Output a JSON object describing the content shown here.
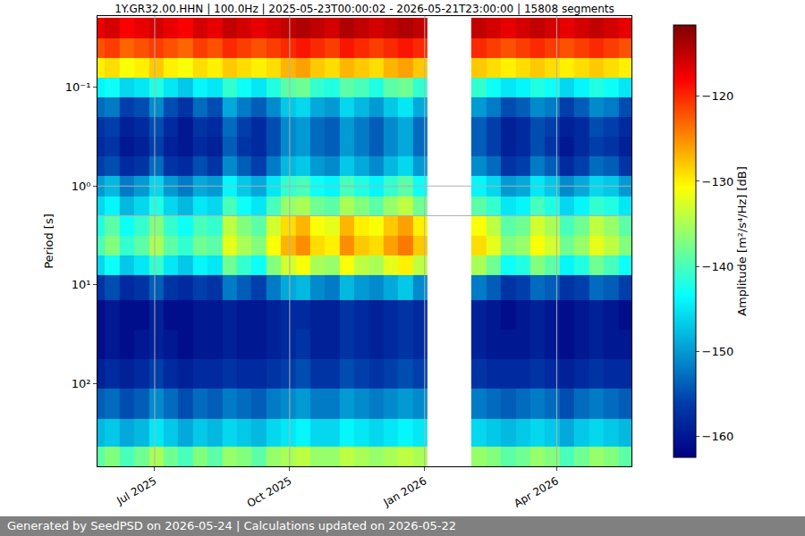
{
  "chart_data": {
    "type": "heatmap",
    "title": "1Y.GR32.00.HHN | 100.0Hz | 2025-05-23T00:00:02 - 2026-05-21T23:00:00 | 15808 segments",
    "footer": "Generated by SeedPSD on 2026-05-24 | Calculations updated on 2026-05-22",
    "y_label": "Period [s]",
    "colorbar_label": "Amplitude [m²/s⁴/Hz] [dB]",
    "color": "Jet",
    "log": "y",
    "grid": true,
    "xlim": [
      "2025-05-23T00:00:02",
      "2026-05-21T23:00:00"
    ],
    "xticks": [
      {
        "value": "2025-07-01",
        "label": "Jul 2025"
      },
      {
        "value": "2025-10-01",
        "label": "Oct 2025"
      },
      {
        "value": "2026-01-01",
        "label": "Jan 2026"
      },
      {
        "value": "2026-04-01",
        "label": "Apr 2026"
      }
    ],
    "ylim": [
      690,
      0.019
    ],
    "yticks": [
      {
        "value": 0.1,
        "label": "10⁻¹"
      },
      {
        "value": 1,
        "label": "10⁰"
      },
      {
        "value": 10,
        "label": "10¹"
      },
      {
        "value": 100,
        "label": "10²"
      }
    ],
    "zlim": [
      -162.5,
      -111.6
    ],
    "zticks": [
      {
        "value": -160,
        "label": "−160"
      },
      {
        "value": -150,
        "label": "−150"
      },
      {
        "value": -140,
        "label": "−140"
      },
      {
        "value": -130,
        "label": "−130"
      },
      {
        "value": -120,
        "label": "−120"
      }
    ],
    "x": [
      "2025-05-23",
      "2025-06-02",
      "2025-06-12",
      "2025-06-22",
      "2025-07-02",
      "2025-07-12",
      "2025-07-22",
      "2025-08-01",
      "2025-08-11",
      "2025-08-21",
      "2025-08-31",
      "2025-09-10",
      "2025-09-20",
      "2025-09-30",
      "2025-10-10",
      "2025-10-20",
      "2025-10-30",
      "2025-11-09",
      "2025-11-19",
      "2025-11-29",
      "2025-12-09",
      "2025-12-19",
      "2025-12-29",
      "2026-01-08",
      "2026-01-18",
      "2026-01-28",
      "2026-02-07",
      "2026-02-17",
      "2026-02-27",
      "2026-03-09",
      "2026-03-19",
      "2026-03-29",
      "2026-04-08",
      "2026-04-18",
      "2026-04-28",
      "2026-05-08",
      "2026-05-18"
    ],
    "y": [
      0.025,
      0.04,
      0.063,
      0.1,
      0.16,
      0.25,
      0.4,
      0.63,
      1,
      1.6,
      2.5,
      4,
      6.3,
      10,
      20,
      40,
      80,
      160,
      320,
      600
    ],
    "z": [
      [
        -117,
        -116,
        -118,
        -117,
        -116,
        -117,
        -118,
        -116,
        -117,
        -115,
        -116,
        -117,
        -116,
        -115,
        -114,
        -115,
        -116,
        -114,
        -115,
        -116,
        -115,
        -114,
        -115,
        null,
        null,
        null,
        -115,
        -116,
        -117,
        -116,
        -115,
        -116,
        -117,
        -116,
        -115,
        -116,
        -117
      ],
      [
        -122,
        -121,
        -123,
        -122,
        -121,
        -122,
        -123,
        -121,
        -122,
        -120,
        -121,
        -122,
        -121,
        -120,
        -119,
        -120,
        -121,
        -119,
        -120,
        -121,
        -120,
        -119,
        -120,
        null,
        null,
        null,
        -120,
        -121,
        -122,
        -121,
        -120,
        -121,
        -122,
        -121,
        -120,
        -121,
        -122
      ],
      [
        -130,
        -129,
        -131,
        -130,
        -128,
        -130,
        -131,
        -129,
        -130,
        -128,
        -129,
        -130,
        -129,
        -127,
        -126,
        -128,
        -129,
        -127,
        -128,
        -129,
        -127,
        -126,
        -128,
        null,
        null,
        null,
        -128,
        -129,
        -130,
        -129,
        -128,
        -129,
        -130,
        -129,
        -128,
        -129,
        -130
      ],
      [
        -144,
        -143,
        -146,
        -145,
        -142,
        -145,
        -147,
        -144,
        -145,
        -141,
        -143,
        -145,
        -142,
        -139,
        -138,
        -141,
        -142,
        -139,
        -140,
        -142,
        -139,
        -138,
        -141,
        null,
        null,
        null,
        -141,
        -143,
        -145,
        -144,
        -142,
        -143,
        -146,
        -144,
        -142,
        -143,
        -145
      ],
      [
        -153,
        -152,
        -156,
        -155,
        -151,
        -155,
        -157,
        -153,
        -155,
        -149,
        -152,
        -154,
        -151,
        -147,
        -146,
        -149,
        -150,
        -146,
        -148,
        -150,
        -147,
        -145,
        -149,
        null,
        null,
        null,
        -150,
        -152,
        -155,
        -154,
        -151,
        -152,
        -156,
        -154,
        -151,
        -152,
        -155
      ],
      [
        -157,
        -156,
        -159,
        -158,
        -155,
        -158,
        -160,
        -157,
        -158,
        -153,
        -156,
        -158,
        -155,
        -151,
        -150,
        -153,
        -154,
        -150,
        -152,
        -154,
        -151,
        -149,
        -153,
        null,
        null,
        null,
        -154,
        -156,
        -159,
        -158,
        -155,
        -156,
        -159,
        -158,
        -155,
        -156,
        -158
      ],
      [
        -158,
        -157,
        -160,
        -159,
        -156,
        -159,
        -160,
        -158,
        -159,
        -154,
        -157,
        -158,
        -155,
        -151,
        -150,
        -153,
        -154,
        -150,
        -152,
        -154,
        -151,
        -149,
        -153,
        null,
        null,
        null,
        -154,
        -156,
        -159,
        -158,
        -155,
        -157,
        -160,
        -158,
        -156,
        -157,
        -159
      ],
      [
        -156,
        -155,
        -158,
        -157,
        -153,
        -157,
        -158,
        -155,
        -157,
        -151,
        -154,
        -156,
        -152,
        -148,
        -147,
        -150,
        -151,
        -147,
        -149,
        -151,
        -148,
        -146,
        -150,
        null,
        null,
        null,
        -151,
        -153,
        -157,
        -156,
        -152,
        -154,
        -158,
        -156,
        -153,
        -154,
        -157
      ],
      [
        -150,
        -148,
        -152,
        -150,
        -146,
        -150,
        -152,
        -149,
        -150,
        -144,
        -147,
        -149,
        -145,
        -141,
        -140,
        -143,
        -144,
        -140,
        -142,
        -144,
        -141,
        -139,
        -143,
        null,
        null,
        null,
        -144,
        -146,
        -150,
        -149,
        -145,
        -147,
        -151,
        -149,
        -146,
        -147,
        -150
      ],
      [
        -146,
        -144,
        -148,
        -146,
        -142,
        -146,
        -148,
        -145,
        -146,
        -140,
        -143,
        -145,
        -140,
        -136,
        -135,
        -138,
        -139,
        -135,
        -137,
        -139,
        -136,
        -134,
        -138,
        null,
        null,
        null,
        -139,
        -141,
        -145,
        -144,
        -140,
        -142,
        -146,
        -144,
        -141,
        -142,
        -145
      ],
      [
        -142,
        -139,
        -143,
        -141,
        -137,
        -141,
        -143,
        -140,
        -141,
        -134,
        -137,
        -139,
        -133,
        -129,
        -127,
        -131,
        -132,
        -127,
        -130,
        -131,
        -128,
        -126,
        -130,
        null,
        null,
        null,
        -131,
        -134,
        -139,
        -138,
        -133,
        -135,
        -140,
        -138,
        -134,
        -136,
        -139
      ],
      [
        -140,
        -137,
        -141,
        -139,
        -135,
        -139,
        -141,
        -138,
        -139,
        -132,
        -135,
        -137,
        -131,
        -127,
        -125,
        -129,
        -130,
        -125,
        -128,
        -129,
        -126,
        -124,
        -128,
        null,
        null,
        null,
        -129,
        -132,
        -137,
        -136,
        -131,
        -133,
        -138,
        -136,
        -132,
        -134,
        -137
      ],
      [
        -146,
        -143,
        -147,
        -145,
        -141,
        -145,
        -147,
        -144,
        -145,
        -138,
        -141,
        -143,
        -137,
        -133,
        -131,
        -135,
        -136,
        -131,
        -134,
        -135,
        -132,
        -130,
        -134,
        null,
        null,
        null,
        -135,
        -138,
        -143,
        -142,
        -137,
        -139,
        -144,
        -142,
        -138,
        -140,
        -143
      ],
      [
        -157,
        -155,
        -158,
        -157,
        -154,
        -157,
        -158,
        -156,
        -157,
        -152,
        -154,
        -156,
        -152,
        -149,
        -148,
        -151,
        -152,
        -148,
        -150,
        -151,
        -149,
        -147,
        -151,
        null,
        null,
        null,
        -152,
        -154,
        -157,
        -156,
        -153,
        -154,
        -157,
        -156,
        -153,
        -154,
        -156
      ],
      [
        -161,
        -160,
        -161,
        -161,
        -159,
        -161,
        -161,
        -160,
        -160,
        -159,
        -160,
        -160,
        -159,
        -158,
        -158,
        -159,
        -159,
        -157,
        -158,
        -159,
        -158,
        -157,
        -158,
        null,
        null,
        null,
        -159,
        -160,
        -161,
        -160,
        -159,
        -160,
        -161,
        -160,
        -159,
        -160,
        -161
      ],
      [
        -161,
        -160,
        -161,
        -160,
        -159,
        -160,
        -161,
        -160,
        -160,
        -159,
        -160,
        -160,
        -159,
        -158,
        -157,
        -159,
        -159,
        -157,
        -158,
        -159,
        -158,
        -157,
        -158,
        null,
        null,
        null,
        -159,
        -160,
        -160,
        -160,
        -159,
        -160,
        -161,
        -160,
        -159,
        -160,
        -160
      ],
      [
        -159,
        -158,
        -159,
        -158,
        -156,
        -158,
        -159,
        -158,
        -158,
        -157,
        -158,
        -158,
        -157,
        -156,
        -155,
        -157,
        -157,
        -155,
        -156,
        -157,
        -156,
        -155,
        -156,
        null,
        null,
        null,
        -157,
        -158,
        -158,
        -158,
        -157,
        -158,
        -159,
        -158,
        -157,
        -158,
        -158
      ],
      [
        -154,
        -153,
        -155,
        -154,
        -151,
        -153,
        -155,
        -153,
        -154,
        -152,
        -153,
        -154,
        -152,
        -151,
        -150,
        -152,
        -152,
        -150,
        -151,
        -152,
        -151,
        -150,
        -151,
        null,
        null,
        null,
        -152,
        -153,
        -154,
        -153,
        -152,
        -153,
        -155,
        -153,
        -152,
        -153,
        -154
      ],
      [
        -148,
        -147,
        -149,
        -148,
        -145,
        -147,
        -149,
        -147,
        -148,
        -146,
        -147,
        -148,
        -146,
        -145,
        -144,
        -146,
        -146,
        -144,
        -145,
        -146,
        -145,
        -144,
        -145,
        null,
        null,
        null,
        -146,
        -147,
        -148,
        -147,
        -146,
        -147,
        -149,
        -147,
        -146,
        -147,
        -148
      ],
      [
        -139,
        -137,
        -140,
        -138,
        -135,
        -138,
        -140,
        -137,
        -139,
        -136,
        -137,
        -139,
        -136,
        -135,
        -134,
        -136,
        -136,
        -134,
        -135,
        -136,
        -135,
        -134,
        -135,
        null,
        null,
        null,
        -136,
        -137,
        -139,
        -138,
        -136,
        -137,
        -140,
        -138,
        -136,
        -137,
        -139
      ]
    ]
  }
}
